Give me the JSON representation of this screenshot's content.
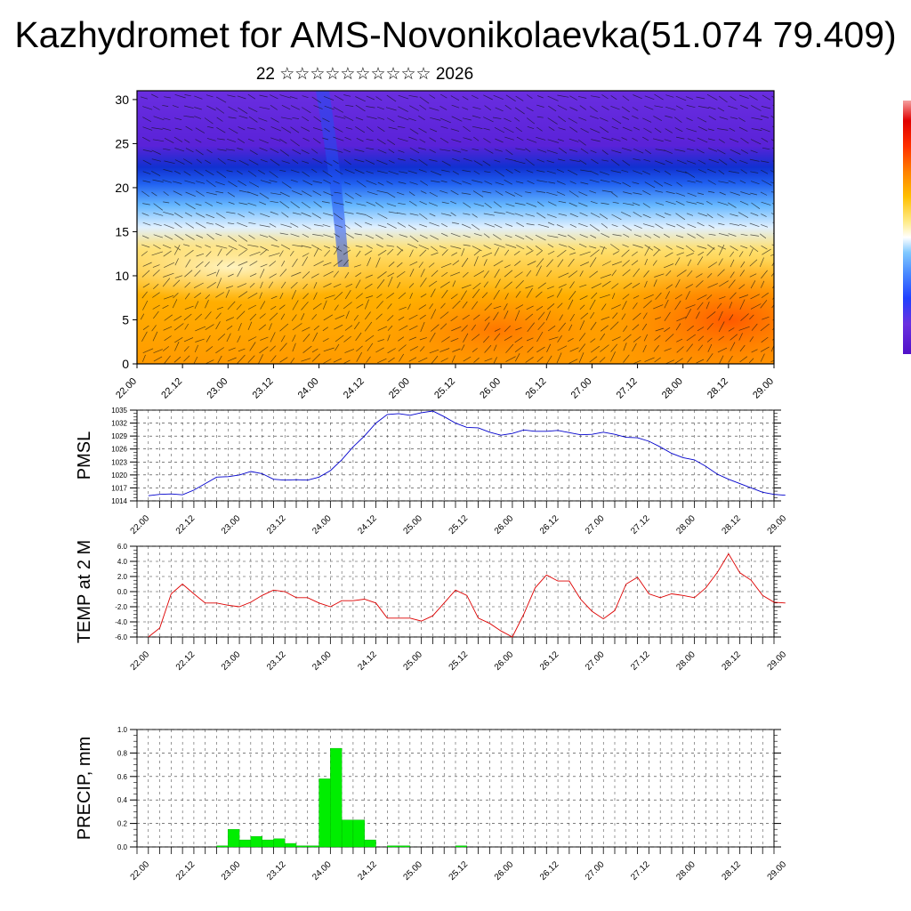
{
  "title": "Kazhydromet for AMS-Novonikolaevka(51.074 79.409)",
  "subtitle": "22 ☆☆☆☆☆☆☆☆☆☆ 2026",
  "time_ticks": [
    "22.00",
    "22.12",
    "23.00",
    "23.12",
    "24.00",
    "24.12",
    "25.00",
    "25.12",
    "26.00",
    "26.12",
    "27.00",
    "27.12",
    "28.00",
    "28.12",
    "29.00"
  ],
  "colors": {
    "pmsl_line": "#0000cc",
    "temp_line": "#dd0000",
    "precip_bar": "#00ee00",
    "grid": "#333333"
  },
  "chart_data": [
    {
      "type": "heatmap",
      "title": "",
      "ylabel": "",
      "yticks": [
        "0",
        "5",
        "10",
        "15",
        "20",
        "25",
        "30"
      ],
      "ylim": [
        0,
        31
      ],
      "colorbar_colors": [
        "#5010c8",
        "#6a30e0",
        "#2040ff",
        "#4a8bff",
        "#7fc8ff",
        "#ffffff",
        "#ffec8b",
        "#ffc000",
        "#ff8000",
        "#ff3000",
        "#e00000",
        "#f5a0a0"
      ]
    },
    {
      "type": "line",
      "ylabel": "PMSL",
      "ylim": [
        1014,
        1035
      ],
      "yticks": [
        "1014",
        "1017",
        "1020",
        "1023",
        "1026",
        "1029",
        "1032",
        "1035"
      ],
      "series": [
        {
          "name": "PMSL",
          "x": [
            0,
            3,
            6,
            9,
            12,
            15,
            18,
            21,
            24,
            27,
            30,
            33,
            36,
            39,
            42,
            45,
            48,
            51,
            54,
            57,
            60,
            63,
            66,
            69,
            72,
            75,
            78,
            81,
            84,
            87,
            90,
            93,
            96,
            99,
            102,
            105,
            108,
            111,
            114,
            117,
            120,
            123,
            126,
            129,
            132,
            135,
            138,
            141,
            144,
            147,
            150,
            153,
            156,
            159,
            162,
            165,
            168
          ],
          "values": [
            1015.2,
            1015.5,
            1015.6,
            1015.4,
            1016.5,
            1018.0,
            1019.5,
            1019.6,
            1020.0,
            1020.8,
            1020.3,
            1019.0,
            1018.8,
            1018.9,
            1018.8,
            1019.5,
            1021.0,
            1023.5,
            1026.5,
            1029.0,
            1032.0,
            1034.0,
            1034.2,
            1033.8,
            1034.4,
            1034.8,
            1033.5,
            1032.0,
            1031.0,
            1030.9,
            1029.9,
            1029.2,
            1029.6,
            1030.4,
            1030.1,
            1030.1,
            1030.3,
            1029.8,
            1029.3,
            1029.4,
            1029.9,
            1029.4,
            1028.7,
            1028.6,
            1027.8,
            1026.5,
            1025.0,
            1024.0,
            1023.5,
            1022.0,
            1020.2,
            1019.0,
            1018.0,
            1017.0,
            1016.0,
            1015.5,
            1015.3
          ]
        }
      ]
    },
    {
      "type": "line",
      "ylabel": "TEMP at 2 M",
      "ylim": [
        -6,
        6
      ],
      "yticks": [
        "-6.0",
        "-4.0",
        "-2.0",
        "0.0",
        "2.0",
        "4.0",
        "6.0"
      ],
      "series": [
        {
          "name": "TEMP",
          "x": [
            0,
            3,
            6,
            9,
            12,
            15,
            18,
            21,
            24,
            27,
            30,
            33,
            36,
            39,
            42,
            45,
            48,
            51,
            54,
            57,
            60,
            63,
            66,
            69,
            72,
            75,
            78,
            81,
            84,
            87,
            90,
            93,
            96,
            99,
            102,
            105,
            108,
            111,
            114,
            117,
            120,
            123,
            126,
            129,
            132,
            135,
            138,
            141,
            144,
            147,
            150,
            153,
            156,
            159,
            162,
            165,
            168
          ],
          "values": [
            -6.0,
            -4.8,
            -0.3,
            1.0,
            -0.3,
            -1.5,
            -1.5,
            -1.8,
            -2.0,
            -1.4,
            -0.5,
            0.2,
            0.0,
            -0.8,
            -0.8,
            -1.5,
            -2.0,
            -1.2,
            -1.2,
            -1.0,
            -1.5,
            -3.5,
            -3.5,
            -3.5,
            -3.9,
            -3.2,
            -1.5,
            0.2,
            -0.5,
            -3.5,
            -4.2,
            -5.2,
            -6.0,
            -3.0,
            0.5,
            2.2,
            1.4,
            1.4,
            -1.0,
            -2.6,
            -3.6,
            -2.5,
            1.0,
            1.9,
            -0.3,
            -0.8,
            -0.3,
            -0.5,
            -0.8,
            0.5,
            2.5,
            5.0,
            2.5,
            1.5,
            -0.5,
            -1.4,
            -1.5
          ]
        }
      ]
    },
    {
      "type": "bar",
      "ylabel": "PRECIP, mm",
      "ylim": [
        0,
        1.0
      ],
      "yticks": [
        "0.0",
        "0.2",
        "0.4",
        "0.6",
        "0.8",
        "1.0"
      ],
      "series": [
        {
          "name": "PRECIP",
          "x": [
            21,
            24,
            27,
            30,
            33,
            36,
            39,
            42,
            45,
            48,
            51,
            54,
            57,
            60,
            63,
            66,
            69,
            72,
            75,
            78,
            81,
            84,
            87,
            90,
            93,
            96
          ],
          "values": [
            0.01,
            0.15,
            0.06,
            0.09,
            0.06,
            0.07,
            0.03,
            0.01,
            0.01,
            0.58,
            0.84,
            0.23,
            0.23,
            0.06,
            0.0,
            0.01,
            0.01,
            0.0,
            0.0,
            0.0,
            0.0,
            0.01,
            0.0,
            0.0,
            0.0,
            0.0
          ]
        }
      ]
    }
  ]
}
